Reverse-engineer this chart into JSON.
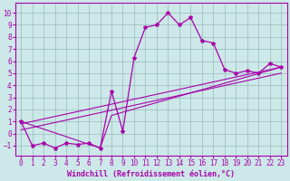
{
  "xlabel": "Windchill (Refroidissement éolien,°C)",
  "bg_color": "#cce8e8",
  "line_color": "#aa00aa",
  "xlim": [
    -0.5,
    23.5
  ],
  "ylim": [
    -1.8,
    10.8
  ],
  "xticks": [
    0,
    1,
    2,
    3,
    4,
    5,
    6,
    7,
    8,
    9,
    10,
    11,
    12,
    13,
    14,
    15,
    16,
    17,
    18,
    19,
    20,
    21,
    22,
    23
  ],
  "yticks": [
    -1,
    0,
    1,
    2,
    3,
    4,
    5,
    6,
    7,
    8,
    9,
    10
  ],
  "main_line_x": [
    0,
    1,
    2,
    3,
    4,
    5,
    6,
    7,
    8,
    9,
    10,
    11,
    12,
    13,
    14,
    15,
    16,
    17,
    18,
    19,
    20,
    21,
    22,
    23
  ],
  "main_line_y": [
    1.0,
    -1.0,
    -0.8,
    -1.2,
    -0.8,
    -0.9,
    -0.8,
    -1.2,
    3.5,
    0.2,
    6.3,
    8.8,
    9.0,
    10.0,
    9.0,
    9.6,
    7.7,
    7.5,
    5.3,
    5.0,
    5.2,
    5.0,
    5.8,
    5.5
  ],
  "line2_x": [
    0,
    7,
    8,
    23
  ],
  "line2_y": [
    1.0,
    -1.2,
    1.5,
    5.5
  ],
  "line3_x": [
    0,
    23
  ],
  "line3_y": [
    0.8,
    5.5
  ],
  "line4_x": [
    0,
    23
  ],
  "line4_y": [
    0.3,
    5.0
  ],
  "grid_color": "#99bbbb",
  "font_size": 5.5,
  "xlabel_font_size": 6.0
}
